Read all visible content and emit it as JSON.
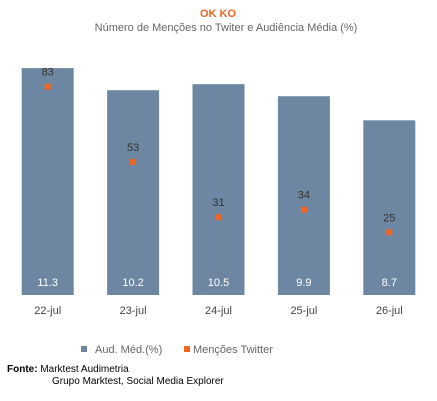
{
  "chart_data": {
    "type": "bar",
    "title": "OK KO",
    "subtitle": "Número de Menções no Twiter e Audiência Média (%)",
    "categories": [
      "22-jul",
      "23-jul",
      "24-jul",
      "25-jul",
      "26-jul"
    ],
    "series": [
      {
        "name": "Aud. Méd.(%)",
        "type": "bar",
        "values": [
          11.3,
          10.2,
          10.5,
          9.9,
          8.7
        ],
        "color": "#6d87a3"
      },
      {
        "name": "Menções Twitter",
        "type": "scatter",
        "values": [
          83,
          53,
          31,
          34,
          25
        ],
        "color": "#f26522"
      }
    ],
    "bar_ylim": [
      0,
      12.5
    ],
    "point_ylim": [
      0,
      100
    ],
    "legend_position": "bottom",
    "grid": false
  },
  "source": {
    "label": "Fonte:",
    "line1": "Marktest Audimetria",
    "line2": "Grupo Marktest, Social Media Explorer"
  }
}
